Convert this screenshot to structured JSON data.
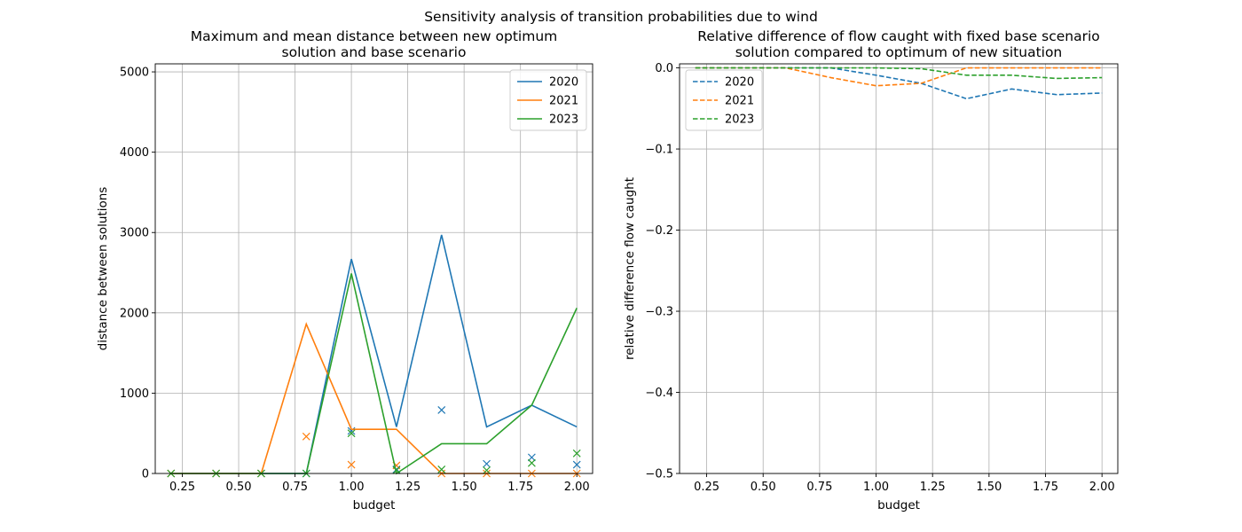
{
  "suptitle": "Sensitivity analysis of transition probabilities due to wind",
  "chart_data": [
    {
      "type": "line",
      "title_line1": "Maximum and mean distance between new optimum",
      "title_line2": "solution and base scenario",
      "xlabel": "budget",
      "ylabel": "distance between solutions",
      "xlim": [
        0.13,
        2.07
      ],
      "ylim": [
        0,
        5100
      ],
      "xticks": [
        "0.25",
        "0.50",
        "0.75",
        "1.00",
        "1.25",
        "1.50",
        "1.75",
        "2.00"
      ],
      "yticks": [
        "0",
        "1000",
        "2000",
        "3000",
        "4000",
        "5000"
      ],
      "grid": true,
      "legend_position": "top-right",
      "x": [
        0.2,
        0.4,
        0.6,
        0.8,
        1.0,
        1.2,
        1.4,
        1.6,
        1.8,
        2.0
      ],
      "series": [
        {
          "name": "2020",
          "color": "#1f77b4",
          "style": "solid",
          "max": [
            0,
            0,
            0,
            0,
            2670,
            580,
            2970,
            580,
            850,
            580
          ],
          "mean": [
            0,
            0,
            0,
            0,
            530,
            50,
            790,
            120,
            200,
            110
          ]
        },
        {
          "name": "2021",
          "color": "#ff7f0e",
          "style": "solid",
          "max": [
            0,
            0,
            0,
            1860,
            550,
            550,
            0,
            0,
            0,
            0
          ],
          "mean": [
            0,
            0,
            0,
            460,
            110,
            100,
            0,
            0,
            0,
            0
          ]
        },
        {
          "name": "2023",
          "color": "#2ca02c",
          "style": "solid",
          "max": [
            0,
            0,
            0,
            0,
            2490,
            0,
            370,
            370,
            850,
            2060
          ],
          "mean": [
            0,
            0,
            0,
            0,
            500,
            40,
            50,
            40,
            130,
            250
          ]
        }
      ]
    },
    {
      "type": "line",
      "title_line1": "Relative difference of flow caught with fixed base scenario",
      "title_line2": "solution compared to optimum of new situation",
      "xlabel": "budget",
      "ylabel": "relative difference flow caught",
      "xlim": [
        0.13,
        2.07
      ],
      "ylim": [
        -0.5,
        0.005
      ],
      "xticks": [
        "0.25",
        "0.50",
        "0.75",
        "1.00",
        "1.25",
        "1.50",
        "1.75",
        "2.00"
      ],
      "yticks": [
        "0.0",
        "−0.1",
        "−0.2",
        "−0.3",
        "−0.4",
        "−0.5"
      ],
      "grid": true,
      "legend_position": "top-left",
      "x": [
        0.2,
        0.4,
        0.6,
        0.8,
        1.0,
        1.2,
        1.4,
        1.6,
        1.8,
        2.0
      ],
      "series": [
        {
          "name": "2020",
          "color": "#1f77b4",
          "style": "dashed",
          "values": [
            0,
            0,
            0,
            0,
            -0.009,
            -0.019,
            -0.038,
            -0.026,
            -0.033,
            -0.031
          ]
        },
        {
          "name": "2021",
          "color": "#ff7f0e",
          "style": "dashed",
          "values": [
            0,
            0,
            0,
            -0.012,
            -0.022,
            -0.019,
            0,
            0,
            0,
            0
          ]
        },
        {
          "name": "2023",
          "color": "#2ca02c",
          "style": "dashed",
          "values": [
            0,
            0,
            0,
            0,
            0,
            -0.001,
            -0.009,
            -0.009,
            -0.013,
            -0.012
          ]
        }
      ]
    }
  ]
}
